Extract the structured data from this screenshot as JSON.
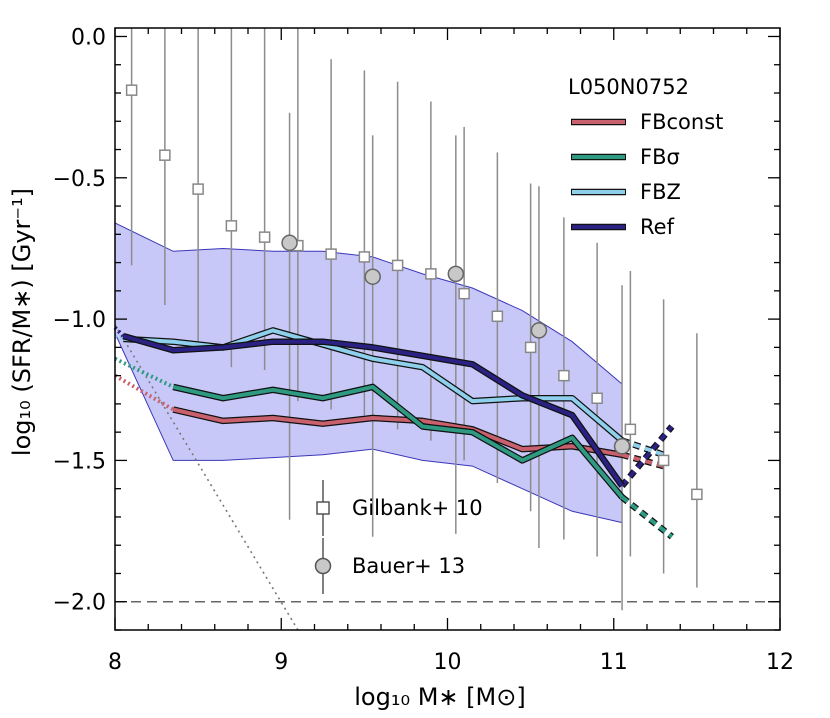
{
  "chart_data": {
    "type": "line",
    "title": "",
    "xlabel": "log₁₀ M∗ [M⊙]",
    "ylabel": "log₁₀ (SFR/M∗) [Gyr⁻¹]",
    "xlim": [
      8,
      12
    ],
    "ylim": [
      -2.1,
      0.03
    ],
    "xticks": [
      8,
      9,
      10,
      11,
      12
    ],
    "xtick_labels": [
      "8",
      "9",
      "10",
      "11",
      "12"
    ],
    "yticks": [
      0.0,
      -0.5,
      -1.0,
      -1.5,
      -2.0
    ],
    "ytick_labels": [
      "0.0",
      "−0.5",
      "−1.0",
      "−1.5",
      "−2.0"
    ],
    "legend_title": "L050N0752",
    "legend_position": "top-right",
    "series": [
      {
        "name": "FBconst",
        "color": "#c9606e",
        "x": [
          8.35,
          8.65,
          8.95,
          9.25,
          9.55,
          9.85,
          10.15,
          10.45,
          10.75,
          11.05
        ],
        "y": [
          -1.32,
          -1.36,
          -1.35,
          -1.37,
          -1.35,
          -1.36,
          -1.39,
          -1.46,
          -1.45,
          -1.48
        ],
        "dotted_x": [
          8.0,
          8.35
        ],
        "dotted_y": [
          -1.2,
          -1.32
        ],
        "dashed_x": [
          11.05,
          11.3
        ],
        "dashed_y": [
          -1.48,
          -1.52
        ]
      },
      {
        "name": "FBσ",
        "color": "#2e9a82",
        "x": [
          8.35,
          8.65,
          8.95,
          9.25,
          9.55,
          9.85,
          10.15,
          10.45,
          10.75,
          11.05
        ],
        "y": [
          -1.24,
          -1.28,
          -1.25,
          -1.28,
          -1.24,
          -1.38,
          -1.4,
          -1.5,
          -1.42,
          -1.63
        ],
        "dotted_x": [
          8.0,
          8.35
        ],
        "dotted_y": [
          -1.14,
          -1.24
        ],
        "dashed_x": [
          11.05,
          11.35
        ],
        "dashed_y": [
          -1.63,
          -1.77
        ]
      },
      {
        "name": "FBZ",
        "color": "#8ed0ec",
        "x": [
          8.05,
          8.35,
          8.65,
          8.95,
          9.25,
          9.55,
          9.85,
          10.15,
          10.45,
          10.75,
          11.05
        ],
        "y": [
          -1.07,
          -1.08,
          -1.1,
          -1.04,
          -1.09,
          -1.14,
          -1.17,
          -1.29,
          -1.28,
          -1.28,
          -1.43
        ],
        "dotted_x": [
          8.0,
          8.05
        ],
        "dotted_y": [
          -1.06,
          -1.07
        ],
        "dashed_x": [
          11.05,
          11.3
        ],
        "dashed_y": [
          -1.43,
          -1.48
        ]
      },
      {
        "name": "Ref",
        "color": "#2b2182",
        "x": [
          8.05,
          8.35,
          8.65,
          8.95,
          9.25,
          9.55,
          9.85,
          10.15,
          10.45,
          10.75,
          11.05
        ],
        "y": [
          -1.06,
          -1.11,
          -1.1,
          -1.08,
          -1.08,
          -1.1,
          -1.13,
          -1.16,
          -1.27,
          -1.34,
          -1.59
        ],
        "dotted_x": [
          8.0,
          8.05
        ],
        "dotted_y": [
          -1.03,
          -1.06
        ],
        "dashed_x": [
          11.05,
          11.35
        ],
        "dashed_y": [
          -1.59,
          -1.38
        ]
      }
    ],
    "shaded_band": {
      "color": "#c8c8f8",
      "x": [
        8.0,
        8.35,
        8.65,
        8.95,
        9.25,
        9.55,
        9.85,
        10.15,
        10.45,
        10.75,
        11.05
      ],
      "upper": [
        -0.66,
        -0.76,
        -0.75,
        -0.76,
        -0.76,
        -0.78,
        -0.84,
        -0.89,
        -0.97,
        -1.08,
        -1.23
      ],
      "lower": [
        -1.05,
        -1.5,
        -1.5,
        -1.49,
        -1.48,
        -1.46,
        -1.5,
        -1.52,
        -1.6,
        -1.68,
        -1.72
      ]
    },
    "observations": [
      {
        "name": "Gilbank+ 10",
        "marker": "square",
        "x": [
          8.1,
          8.3,
          8.5,
          8.7,
          8.9,
          9.1,
          9.3,
          9.5,
          9.7,
          9.9,
          10.1,
          10.3,
          10.5,
          10.7,
          10.9,
          11.1,
          11.3,
          11.5
        ],
        "y": [
          -0.19,
          -0.42,
          -0.54,
          -0.67,
          -0.71,
          -0.74,
          -0.77,
          -0.78,
          -0.81,
          -0.84,
          -0.91,
          -0.99,
          -1.1,
          -1.2,
          -1.28,
          -1.39,
          -1.5,
          -1.62
        ],
        "ylow": [
          -0.81,
          -0.95,
          -1.08,
          -1.17,
          -1.18,
          -1.29,
          -1.32,
          -1.34,
          -1.39,
          -1.43,
          -1.5,
          -1.58,
          -1.68,
          -1.78,
          -1.84,
          -1.84,
          -1.9,
          -1.95
        ],
        "yhigh": [
          0.03,
          0.03,
          0.03,
          0.03,
          0.03,
          0.03,
          -0.08,
          -0.12,
          -0.16,
          -0.23,
          -0.32,
          -0.41,
          -0.52,
          -0.64,
          -0.73,
          -0.83,
          -0.93,
          -1.05
        ]
      },
      {
        "name": "Bauer+ 13",
        "marker": "circle",
        "x": [
          9.05,
          9.55,
          10.05,
          10.55,
          11.05
        ],
        "y": [
          -0.73,
          -0.85,
          -0.84,
          -1.04,
          -1.45
        ],
        "ylow": [
          -1.71,
          -1.77,
          -1.76,
          -1.81,
          -2.03
        ],
        "yhigh": [
          -0.27,
          -0.35,
          -0.35,
          -0.53,
          -0.88
        ]
      }
    ],
    "reference_lines": [
      {
        "kind": "horizontal-dashed",
        "y": -2.0,
        "color": "#666666"
      },
      {
        "kind": "diagonal-dotted",
        "x": [
          8.0,
          9.1
        ],
        "y": [
          -1.02,
          -2.1
        ],
        "color": "#777777"
      }
    ]
  }
}
